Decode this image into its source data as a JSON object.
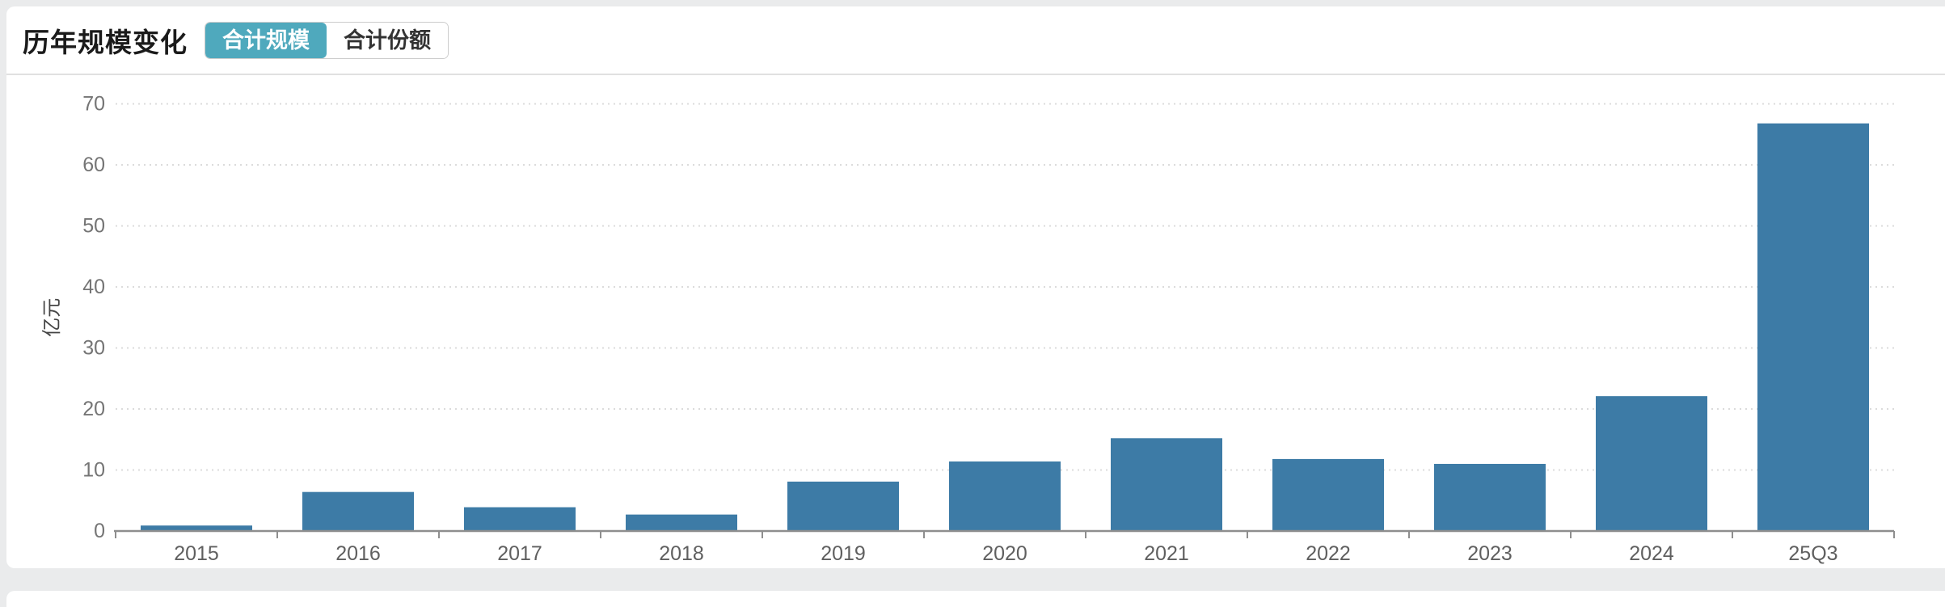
{
  "header": {
    "title": "历年规模变化",
    "toggle": {
      "options": [
        {
          "label": "合计规模",
          "active": true
        },
        {
          "label": "合计份额",
          "active": false
        }
      ]
    }
  },
  "chart_data": {
    "type": "bar",
    "title": "历年规模变化",
    "categories": [
      "2015",
      "2016",
      "2017",
      "2018",
      "2019",
      "2020",
      "2021",
      "2022",
      "2023",
      "2024",
      "25Q3"
    ],
    "values": [
      0.9,
      6.4,
      3.9,
      2.7,
      8.1,
      11.4,
      15.2,
      11.8,
      11.0,
      22.1,
      66.8
    ],
    "ylabel": "亿元",
    "xlabel": "",
    "ylim": [
      0,
      70
    ],
    "yticks": [
      0,
      10,
      20,
      30,
      40,
      50,
      60,
      70
    ],
    "grid": "dotted-horizontal",
    "legend": false,
    "bar_color": "#3D7BA6"
  },
  "colors": {
    "accent_teal": "#4FA9BD",
    "bar_blue": "#3D7BA6",
    "page_background": "#EAEBEC",
    "card_background": "#FFFFFF",
    "axis_line": "#8E8E8E",
    "gridline": "#DBDBDB",
    "tick_label": "#757575",
    "category_label": "#5F5F5F"
  }
}
